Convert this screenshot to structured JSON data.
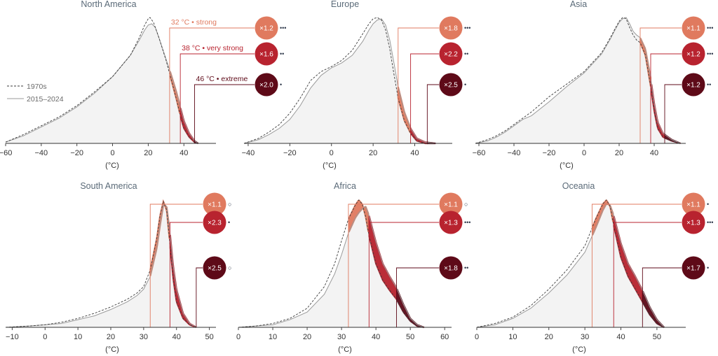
{
  "chart_data": [
    {
      "type": "area",
      "title": "North America",
      "xlabel": "(°C)",
      "xlim": [
        -60,
        58
      ],
      "x_ticks": [
        -60,
        -40,
        -20,
        0,
        20,
        40
      ],
      "x_tick_labels": [
        "−60",
        "−40",
        "−20",
        "0",
        "20",
        "40"
      ],
      "series": [
        {
          "name": "1970s",
          "style": "dashed",
          "x": [
            -62,
            -50,
            -40,
            -30,
            -20,
            -10,
            0,
            10,
            15,
            18,
            20,
            21,
            23,
            26,
            30,
            33,
            36,
            38,
            40,
            43,
            46,
            48
          ],
          "y": [
            0.01,
            0.07,
            0.14,
            0.21,
            0.3,
            0.41,
            0.53,
            0.7,
            0.84,
            0.94,
            0.99,
            1.0,
            0.96,
            0.84,
            0.66,
            0.5,
            0.34,
            0.22,
            0.12,
            0.05,
            0.01,
            0.0
          ]
        },
        {
          "name": "2015–2024",
          "style": "solid",
          "x": [
            -62,
            -50,
            -40,
            -30,
            -20,
            -10,
            0,
            10,
            15,
            18,
            20,
            22,
            24,
            26,
            30,
            33,
            36,
            38,
            40,
            43,
            46,
            48
          ],
          "y": [
            0.01,
            0.06,
            0.13,
            0.2,
            0.29,
            0.4,
            0.53,
            0.7,
            0.82,
            0.9,
            0.94,
            0.95,
            0.92,
            0.84,
            0.67,
            0.54,
            0.4,
            0.29,
            0.18,
            0.08,
            0.02,
            0.0
          ]
        }
      ],
      "thresholds": [
        {
          "temp": 32,
          "label": "32 °C • strong",
          "multiplier": "×1.2",
          "significance": "•••",
          "color": "#e07a5f"
        },
        {
          "temp": 38,
          "label": "38 °C • very strong",
          "multiplier": "×1.6",
          "significance": "••",
          "color": "#b8232f"
        },
        {
          "temp": 46,
          "label": "46 °C • extreme",
          "multiplier": "×2.0",
          "significance": "•",
          "color": "#5e0a18"
        }
      ]
    },
    {
      "type": "area",
      "title": "Europe",
      "xlabel": "(°C)",
      "xlim": [
        -42,
        58
      ],
      "x_ticks": [
        -40,
        -20,
        0,
        20,
        40
      ],
      "x_tick_labels": [
        "−40",
        "−20",
        "0",
        "20",
        "40"
      ],
      "series": [
        {
          "name": "1970s",
          "style": "dashed",
          "x": [
            -42,
            -35,
            -30,
            -25,
            -20,
            -15,
            -10,
            -5,
            0,
            5,
            10,
            15,
            18,
            20,
            22,
            24,
            26,
            28,
            30,
            32,
            35,
            38,
            41,
            45,
            50
          ],
          "y": [
            0.0,
            0.04,
            0.09,
            0.15,
            0.24,
            0.36,
            0.5,
            0.57,
            0.61,
            0.66,
            0.74,
            0.87,
            0.95,
            0.99,
            1.0,
            0.98,
            0.9,
            0.75,
            0.55,
            0.36,
            0.18,
            0.08,
            0.02,
            0.0,
            0.0
          ]
        },
        {
          "name": "2015–2024",
          "style": "solid",
          "x": [
            -42,
            -35,
            -30,
            -25,
            -20,
            -15,
            -10,
            -5,
            0,
            5,
            10,
            15,
            18,
            20,
            22,
            24,
            26,
            28,
            30,
            32,
            35,
            38,
            41,
            45,
            50
          ],
          "y": [
            0.0,
            0.03,
            0.07,
            0.12,
            0.19,
            0.3,
            0.44,
            0.54,
            0.6,
            0.64,
            0.7,
            0.81,
            0.9,
            0.95,
            0.98,
            0.99,
            0.94,
            0.82,
            0.64,
            0.45,
            0.25,
            0.12,
            0.04,
            0.01,
            0.0
          ]
        }
      ],
      "thresholds": [
        {
          "temp": 32,
          "multiplier": "×1.8",
          "significance": "•••",
          "color": "#e07a5f"
        },
        {
          "temp": 38,
          "multiplier": "×2.2",
          "significance": "••",
          "color": "#b8232f"
        },
        {
          "temp": 46,
          "multiplier": "×2.5",
          "significance": "•",
          "color": "#5e0a18"
        }
      ]
    },
    {
      "type": "area",
      "title": "Asia",
      "xlabel": "(°C)",
      "xlim": [
        -62,
        58
      ],
      "x_ticks": [
        -60,
        -40,
        -20,
        0,
        20,
        40
      ],
      "x_tick_labels": [
        "−60",
        "−40",
        "−20",
        "0",
        "20",
        "40"
      ],
      "series": [
        {
          "name": "1970s",
          "style": "dashed",
          "x": [
            -62,
            -55,
            -50,
            -45,
            -40,
            -35,
            -30,
            -20,
            -10,
            0,
            10,
            15,
            18,
            20,
            22,
            24,
            26,
            28,
            30,
            32,
            35,
            38,
            40,
            42,
            45,
            50,
            55
          ],
          "y": [
            0.0,
            0.03,
            0.06,
            0.1,
            0.15,
            0.2,
            0.25,
            0.37,
            0.47,
            0.57,
            0.72,
            0.84,
            0.92,
            0.97,
            1.0,
            0.99,
            0.92,
            0.86,
            0.82,
            0.8,
            0.7,
            0.45,
            0.26,
            0.12,
            0.05,
            0.02,
            0.0
          ]
        },
        {
          "name": "2015–2024",
          "style": "solid",
          "x": [
            -62,
            -55,
            -50,
            -45,
            -40,
            -35,
            -30,
            -20,
            -10,
            0,
            10,
            15,
            18,
            20,
            22,
            24,
            26,
            28,
            30,
            32,
            35,
            38,
            40,
            42,
            45,
            50,
            55
          ],
          "y": [
            0.0,
            0.02,
            0.05,
            0.09,
            0.14,
            0.19,
            0.22,
            0.33,
            0.45,
            0.56,
            0.71,
            0.83,
            0.91,
            0.96,
            0.99,
            1.0,
            0.95,
            0.89,
            0.86,
            0.84,
            0.75,
            0.52,
            0.32,
            0.17,
            0.08,
            0.03,
            0.0
          ]
        }
      ],
      "thresholds": [
        {
          "temp": 32,
          "multiplier": "×1.1",
          "significance": "•••",
          "color": "#e07a5f"
        },
        {
          "temp": 38,
          "multiplier": "×1.2",
          "significance": "•••",
          "color": "#b8232f"
        },
        {
          "temp": 46,
          "multiplier": "×1.2",
          "significance": "••",
          "color": "#5e0a18"
        }
      ]
    },
    {
      "type": "area",
      "title": "South America",
      "xlabel": "(°C)",
      "xlim": [
        -12,
        52
      ],
      "x_ticks": [
        -10,
        0,
        10,
        20,
        30,
        40,
        50
      ],
      "x_tick_labels": [
        "−10",
        "0",
        "10",
        "20",
        "30",
        "40",
        "50"
      ],
      "series": [
        {
          "name": "1970s",
          "style": "dashed",
          "x": [
            -12,
            -5,
            0,
            5,
            10,
            15,
            20,
            25,
            28,
            30,
            32,
            34,
            35,
            36,
            37,
            38,
            39,
            40,
            42,
            44,
            46
          ],
          "y": [
            0.0,
            0.01,
            0.02,
            0.04,
            0.07,
            0.11,
            0.16,
            0.22,
            0.27,
            0.32,
            0.45,
            0.7,
            0.88,
            0.99,
            0.92,
            0.65,
            0.38,
            0.2,
            0.07,
            0.02,
            0.0
          ]
        },
        {
          "name": "2015–2024",
          "style": "solid",
          "x": [
            -12,
            -5,
            0,
            5,
            10,
            15,
            20,
            25,
            28,
            30,
            32,
            34,
            35,
            36,
            37,
            38,
            39,
            40,
            42,
            44,
            46
          ],
          "y": [
            0.0,
            0.01,
            0.02,
            0.03,
            0.06,
            0.09,
            0.14,
            0.2,
            0.25,
            0.3,
            0.4,
            0.62,
            0.8,
            0.96,
            0.95,
            0.75,
            0.48,
            0.3,
            0.11,
            0.03,
            0.0
          ]
        }
      ],
      "thresholds": [
        {
          "temp": 32,
          "multiplier": "×1.1",
          "significance": "○",
          "color": "#e07a5f"
        },
        {
          "temp": 38,
          "multiplier": "×2.3",
          "significance": "•",
          "color": "#b8232f"
        },
        {
          "temp": 46,
          "multiplier": "×2.5",
          "significance": "○",
          "color": "#5e0a18"
        }
      ]
    },
    {
      "type": "area",
      "title": "Africa",
      "xlabel": "(°C)",
      "xlim": [
        0,
        62
      ],
      "x_ticks": [
        0,
        10,
        20,
        30,
        40,
        50,
        60
      ],
      "x_tick_labels": [
        "0",
        "10",
        "20",
        "30",
        "40",
        "50",
        "60"
      ],
      "series": [
        {
          "name": "1970s",
          "style": "dashed",
          "x": [
            0,
            5,
            10,
            15,
            20,
            25,
            28,
            30,
            32,
            34,
            35,
            36,
            37,
            38,
            40,
            42,
            44,
            46,
            48,
            50,
            52,
            54
          ],
          "y": [
            0.0,
            0.01,
            0.03,
            0.07,
            0.15,
            0.32,
            0.5,
            0.68,
            0.85,
            0.96,
            1.0,
            0.97,
            0.87,
            0.72,
            0.5,
            0.37,
            0.29,
            0.22,
            0.12,
            0.05,
            0.01,
            0.0
          ]
        },
        {
          "name": "2015–2024",
          "style": "solid",
          "x": [
            0,
            5,
            10,
            15,
            20,
            25,
            28,
            30,
            32,
            34,
            35,
            36,
            37,
            38,
            40,
            42,
            44,
            46,
            48,
            50,
            52,
            54
          ],
          "y": [
            0.0,
            0.01,
            0.02,
            0.06,
            0.12,
            0.26,
            0.42,
            0.57,
            0.74,
            0.86,
            0.9,
            0.93,
            0.95,
            0.88,
            0.67,
            0.5,
            0.4,
            0.31,
            0.18,
            0.07,
            0.02,
            0.0
          ]
        }
      ],
      "thresholds": [
        {
          "temp": 32,
          "multiplier": "×1.1",
          "significance": "○",
          "color": "#e07a5f"
        },
        {
          "temp": 38,
          "multiplier": "×1.3",
          "significance": "•••",
          "color": "#b8232f"
        },
        {
          "temp": 46,
          "multiplier": "×1.8",
          "significance": "••",
          "color": "#5e0a18"
        }
      ]
    },
    {
      "type": "area",
      "title": "Oceania",
      "xlabel": "(°C)",
      "xlim": [
        0,
        58
      ],
      "x_ticks": [
        0,
        10,
        20,
        30,
        40,
        50
      ],
      "x_tick_labels": [
        "0",
        "10",
        "20",
        "30",
        "40",
        "50"
      ],
      "series": [
        {
          "name": "1970s",
          "style": "dashed",
          "x": [
            0,
            5,
            10,
            15,
            20,
            25,
            30,
            33,
            35,
            36,
            37,
            38,
            40,
            42,
            44,
            46,
            48,
            50,
            52
          ],
          "y": [
            0.0,
            0.03,
            0.08,
            0.17,
            0.3,
            0.45,
            0.64,
            0.85,
            0.97,
            1.0,
            0.95,
            0.8,
            0.55,
            0.4,
            0.3,
            0.2,
            0.1,
            0.03,
            0.0
          ]
        },
        {
          "name": "2015–2024",
          "style": "solid",
          "x": [
            0,
            5,
            10,
            15,
            20,
            25,
            30,
            33,
            35,
            36,
            37,
            38,
            40,
            42,
            44,
            46,
            48,
            50,
            52
          ],
          "y": [
            0.0,
            0.02,
            0.07,
            0.15,
            0.27,
            0.41,
            0.59,
            0.78,
            0.92,
            0.97,
            0.96,
            0.88,
            0.66,
            0.5,
            0.4,
            0.29,
            0.16,
            0.06,
            0.0
          ]
        }
      ],
      "thresholds": [
        {
          "temp": 32,
          "multiplier": "×1.1",
          "significance": "•",
          "color": "#e07a5f"
        },
        {
          "temp": 38,
          "multiplier": "×1.3",
          "significance": "•••",
          "color": "#b8232f"
        },
        {
          "temp": 46,
          "multiplier": "×1.7",
          "significance": "•",
          "color": "#5e0a18"
        }
      ]
    }
  ],
  "legend": {
    "items": [
      {
        "name": "1970s",
        "style": "dashed"
      },
      {
        "name": "2015–2024",
        "style": "solid"
      }
    ]
  },
  "colors": {
    "historic_line": "#3b3b3b",
    "recent_line": "#9a9a9a",
    "fill": "#f3f3f3",
    "strong": "#e07a5f",
    "very_strong": "#b8232f",
    "extreme": "#5e0a18"
  }
}
